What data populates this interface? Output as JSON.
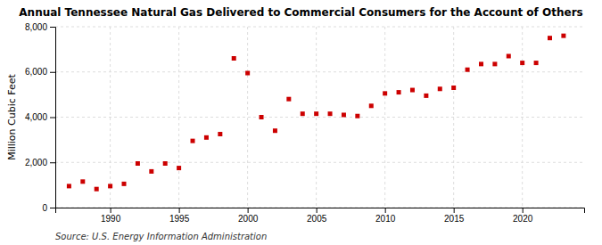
{
  "chart_data": {
    "type": "scatter",
    "title": "Annual Tennessee Natural Gas Delivered to Commercial Consumers for the Account of Others",
    "ylabel": "Million Cubic Feet",
    "annotations": [
      "Source: U.S. Energy Information Administration"
    ],
    "x": [
      1987,
      1988,
      1989,
      1990,
      1991,
      1992,
      1993,
      1994,
      1995,
      1996,
      1997,
      1998,
      1999,
      2000,
      2001,
      2002,
      2003,
      2004,
      2005,
      2006,
      2007,
      2008,
      2009,
      2010,
      2011,
      2012,
      2013,
      2014,
      2015,
      2016,
      2017,
      2018,
      2019,
      2020,
      2021,
      2022,
      2023
    ],
    "values": [
      950,
      1150,
      820,
      950,
      1050,
      1950,
      1600,
      1950,
      1750,
      2950,
      3100,
      3250,
      6600,
      5950,
      4000,
      3400,
      4800,
      4150,
      4150,
      4150,
      4100,
      4050,
      4500,
      5050,
      5100,
      5200,
      4950,
      5250,
      5300,
      6100,
      6350,
      6350,
      6700,
      6400,
      6400,
      7500,
      7600
    ],
    "color": "#cc0000",
    "marker": "square",
    "xlim": [
      1986,
      2024.5
    ],
    "ylim": [
      0,
      8000
    ],
    "xticks": [
      1990,
      1995,
      2000,
      2005,
      2010,
      2015,
      2020
    ],
    "yticks": [
      0,
      {
        "value": 2000,
        "label": "2,000"
      },
      {
        "value": 4000,
        "label": "4,000"
      },
      {
        "value": 6000,
        "label": "6,000"
      },
      {
        "value": 8000,
        "label": "8,000"
      }
    ],
    "grid": true
  }
}
